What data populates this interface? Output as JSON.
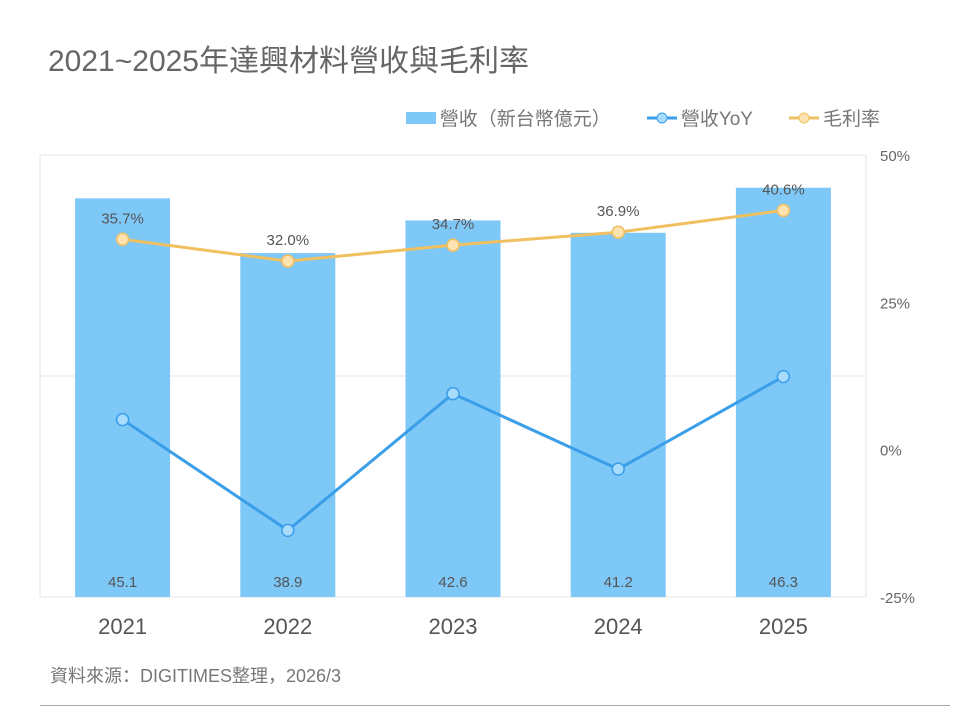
{
  "title": "2021~2025年達興材料營收與毛利率",
  "source": "資料來源：DIGITIMES整理，2026/3",
  "colors": {
    "bar": "#7ec8f8",
    "yoy": "#3a9ee8",
    "yoy_marker": "#a8dcff",
    "margin": "#f0c060",
    "margin_marker": "#fde3b0"
  },
  "chart_data": {
    "type": "bar+line",
    "categories": [
      "2021",
      "2022",
      "2023",
      "2024",
      "2025"
    ],
    "series": [
      {
        "name": "營收（新台幣億元）",
        "type": "bar",
        "axis": "left",
        "values": [
          45.1,
          38.9,
          42.6,
          41.2,
          46.3
        ],
        "labels": [
          "45.1",
          "38.9",
          "42.6",
          "41.2",
          "46.3"
        ]
      },
      {
        "name": "營收YoY",
        "type": "line",
        "axis": "right",
        "values": [
          5.1,
          -13.7,
          9.5,
          -3.3,
          12.4
        ]
      },
      {
        "name": "毛利率",
        "type": "line",
        "axis": "right",
        "values": [
          35.7,
          32.0,
          34.7,
          36.9,
          40.6
        ],
        "labels": [
          "35.7%",
          "32.0%",
          "34.7%",
          "36.9%",
          "40.6%"
        ]
      }
    ],
    "left_axis": {
      "range": [
        0,
        50
      ],
      "visible": false
    },
    "right_axis": {
      "range": [
        -25,
        50
      ],
      "ticks": [
        "50%",
        "25%",
        "0%",
        "-25%"
      ],
      "tick_values": [
        50,
        25,
        0,
        -25
      ]
    },
    "legend": "top-right",
    "grid": "single horizontal midline"
  }
}
